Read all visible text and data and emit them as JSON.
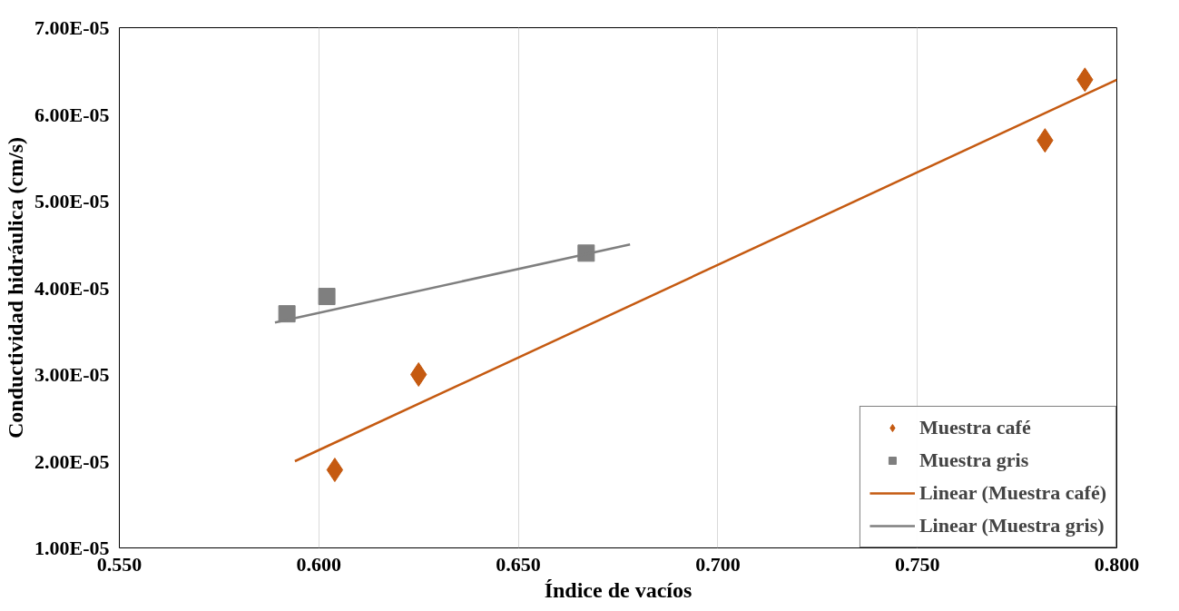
{
  "chart_data": {
    "type": "scatter",
    "xlabel": "Índice de vacíos",
    "ylabel": "Conductividad hidráulica (cm/s)",
    "xlim": [
      0.55,
      0.8
    ],
    "ylim": [
      1e-05,
      7e-05
    ],
    "xticks": [
      {
        "value": 0.55,
        "label": "0.550"
      },
      {
        "value": 0.6,
        "label": "0.600"
      },
      {
        "value": 0.65,
        "label": "0.650"
      },
      {
        "value": 0.7,
        "label": "0.700"
      },
      {
        "value": 0.75,
        "label": "0.750"
      },
      {
        "value": 0.8,
        "label": "0.800"
      }
    ],
    "yticks": [
      {
        "value": 1e-05,
        "label": "1.00E-05"
      },
      {
        "value": 2e-05,
        "label": "2.00E-05"
      },
      {
        "value": 3e-05,
        "label": "3.00E-05"
      },
      {
        "value": 4e-05,
        "label": "4.00E-05"
      },
      {
        "value": 5e-05,
        "label": "5.00E-05"
      },
      {
        "value": 6e-05,
        "label": "6.00E-05"
      },
      {
        "value": 7e-05,
        "label": "7.00E-05"
      }
    ],
    "grid": "x",
    "legend": "bottom right",
    "series": [
      {
        "name": "Muestra café",
        "marker": "diamond",
        "color": "#c55a11",
        "x": [
          0.604,
          0.625,
          0.782,
          0.792
        ],
        "values": [
          1.9e-05,
          3e-05,
          5.7e-05,
          6.4e-05
        ]
      },
      {
        "name": "Muestra gris",
        "marker": "square",
        "color": "#7f7f7f",
        "x": [
          0.592,
          0.602,
          0.667
        ],
        "values": [
          3.7e-05,
          3.9e-05,
          4.4e-05
        ]
      },
      {
        "name": "Linear (Muestra café)",
        "type": "line",
        "line_style": "solid",
        "color": "#c55a11",
        "x": [
          0.594,
          0.8
        ],
        "values": [
          2e-05,
          6.4e-05
        ]
      },
      {
        "name": "Linear (Muestra gris)",
        "type": "line",
        "line_style": "solid",
        "color": "#7f7f7f",
        "x": [
          0.589,
          0.678
        ],
        "values": [
          3.6e-05,
          4.5e-05
        ]
      }
    ]
  }
}
